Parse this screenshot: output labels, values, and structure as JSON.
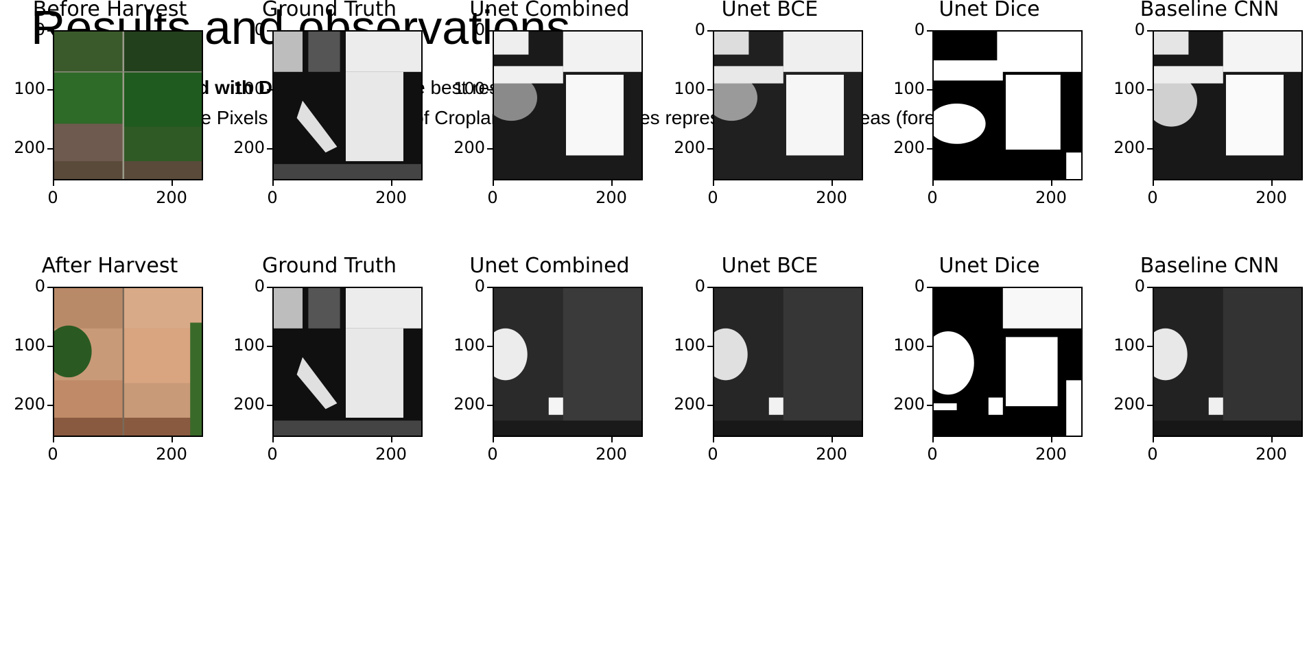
{
  "slide": {
    "title": "Results and observations",
    "bullets": [
      {
        "dash": "-",
        "bold": "Unet trained with Dice loss",
        "rest": " gives the best result"
      },
      {
        "dash": "-",
        "bold": "",
        "rest": "Ideally, White Pixels represent areas of Cropland and Darker ones represent other land areas (forest, rivers e.t.c)"
      }
    ]
  },
  "panels": {
    "row1": [
      "Before Harvest",
      "Ground Truth",
      "Unet Combined",
      "Unet BCE",
      "Unet Dice",
      "Baseline CNN"
    ],
    "row2": [
      "After Harvest",
      "Ground Truth",
      "Unet Combined",
      "Unet BCE",
      "Unet Dice",
      "Baseline CNN"
    ]
  },
  "axes": {
    "yticks": [
      "0",
      "100",
      "200"
    ],
    "xticks": [
      "0",
      "200"
    ]
  }
}
